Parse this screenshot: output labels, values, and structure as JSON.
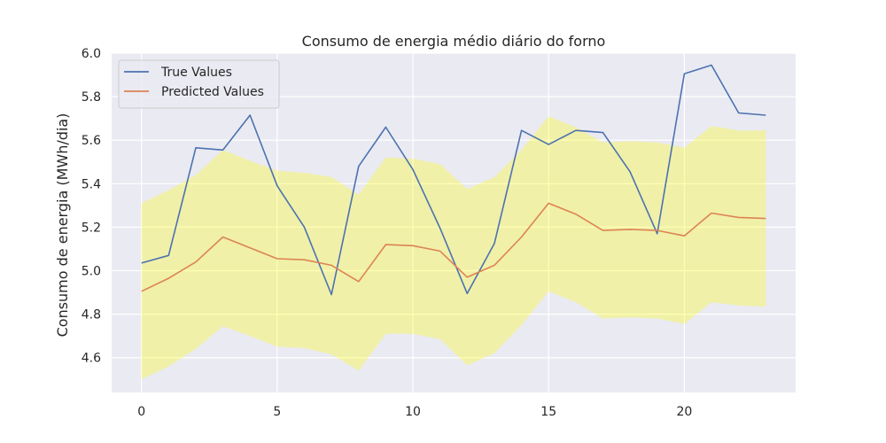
{
  "chart_data": {
    "type": "line",
    "title": "Consumo de energia médio diário do forno",
    "xlabel": "",
    "ylabel": "Consumo de energia (MWh/dia)",
    "xlim": [
      -1.1,
      24.1
    ],
    "ylim": [
      4.44,
      6.0
    ],
    "xticks": [
      0,
      5,
      10,
      15,
      20
    ],
    "yticks": [
      4.6,
      4.8,
      5.0,
      5.2,
      5.4,
      5.6,
      5.8,
      6.0
    ],
    "grid": true,
    "legend_position": "top-left",
    "x": [
      0,
      1,
      2,
      3,
      4,
      5,
      6,
      7,
      8,
      9,
      10,
      11,
      12,
      13,
      14,
      15,
      16,
      17,
      18,
      19,
      20,
      21,
      22,
      23
    ],
    "series": [
      {
        "name": "True Values",
        "color": "#4c72b0",
        "values": [
          5.035,
          5.07,
          5.565,
          5.555,
          5.715,
          5.39,
          5.2,
          4.89,
          5.48,
          5.66,
          5.465,
          5.195,
          4.895,
          5.125,
          5.645,
          5.58,
          5.645,
          5.635,
          5.455,
          5.17,
          5.905,
          5.945,
          5.725,
          5.715
        ]
      },
      {
        "name": "Predicted Values",
        "color": "#dd8452",
        "values": [
          4.905,
          4.965,
          5.04,
          5.155,
          5.105,
          5.055,
          5.05,
          5.025,
          4.95,
          5.12,
          5.115,
          5.09,
          4.97,
          5.025,
          5.155,
          5.31,
          5.26,
          5.185,
          5.19,
          5.185,
          5.16,
          5.265,
          5.245,
          5.24
        ]
      }
    ],
    "band": {
      "color": "#ffff00",
      "opacity": 0.3,
      "upper": [
        5.31,
        5.37,
        5.44,
        5.555,
        5.505,
        5.46,
        5.45,
        5.43,
        5.35,
        5.52,
        5.515,
        5.49,
        5.375,
        5.43,
        5.555,
        5.71,
        5.66,
        5.59,
        5.595,
        5.59,
        5.565,
        5.665,
        5.645,
        5.645
      ],
      "lower": [
        4.5,
        4.56,
        4.64,
        4.745,
        4.7,
        4.65,
        4.645,
        4.615,
        4.54,
        4.71,
        4.71,
        4.685,
        4.565,
        4.62,
        4.75,
        4.905,
        4.855,
        4.78,
        4.785,
        4.78,
        4.755,
        4.855,
        4.84,
        4.835
      ]
    },
    "colors": {
      "plot_background": "#eaeaf2",
      "grid": "#ffffff",
      "legend_background": "#eaeaf2",
      "legend_border": "#cccccc"
    }
  }
}
